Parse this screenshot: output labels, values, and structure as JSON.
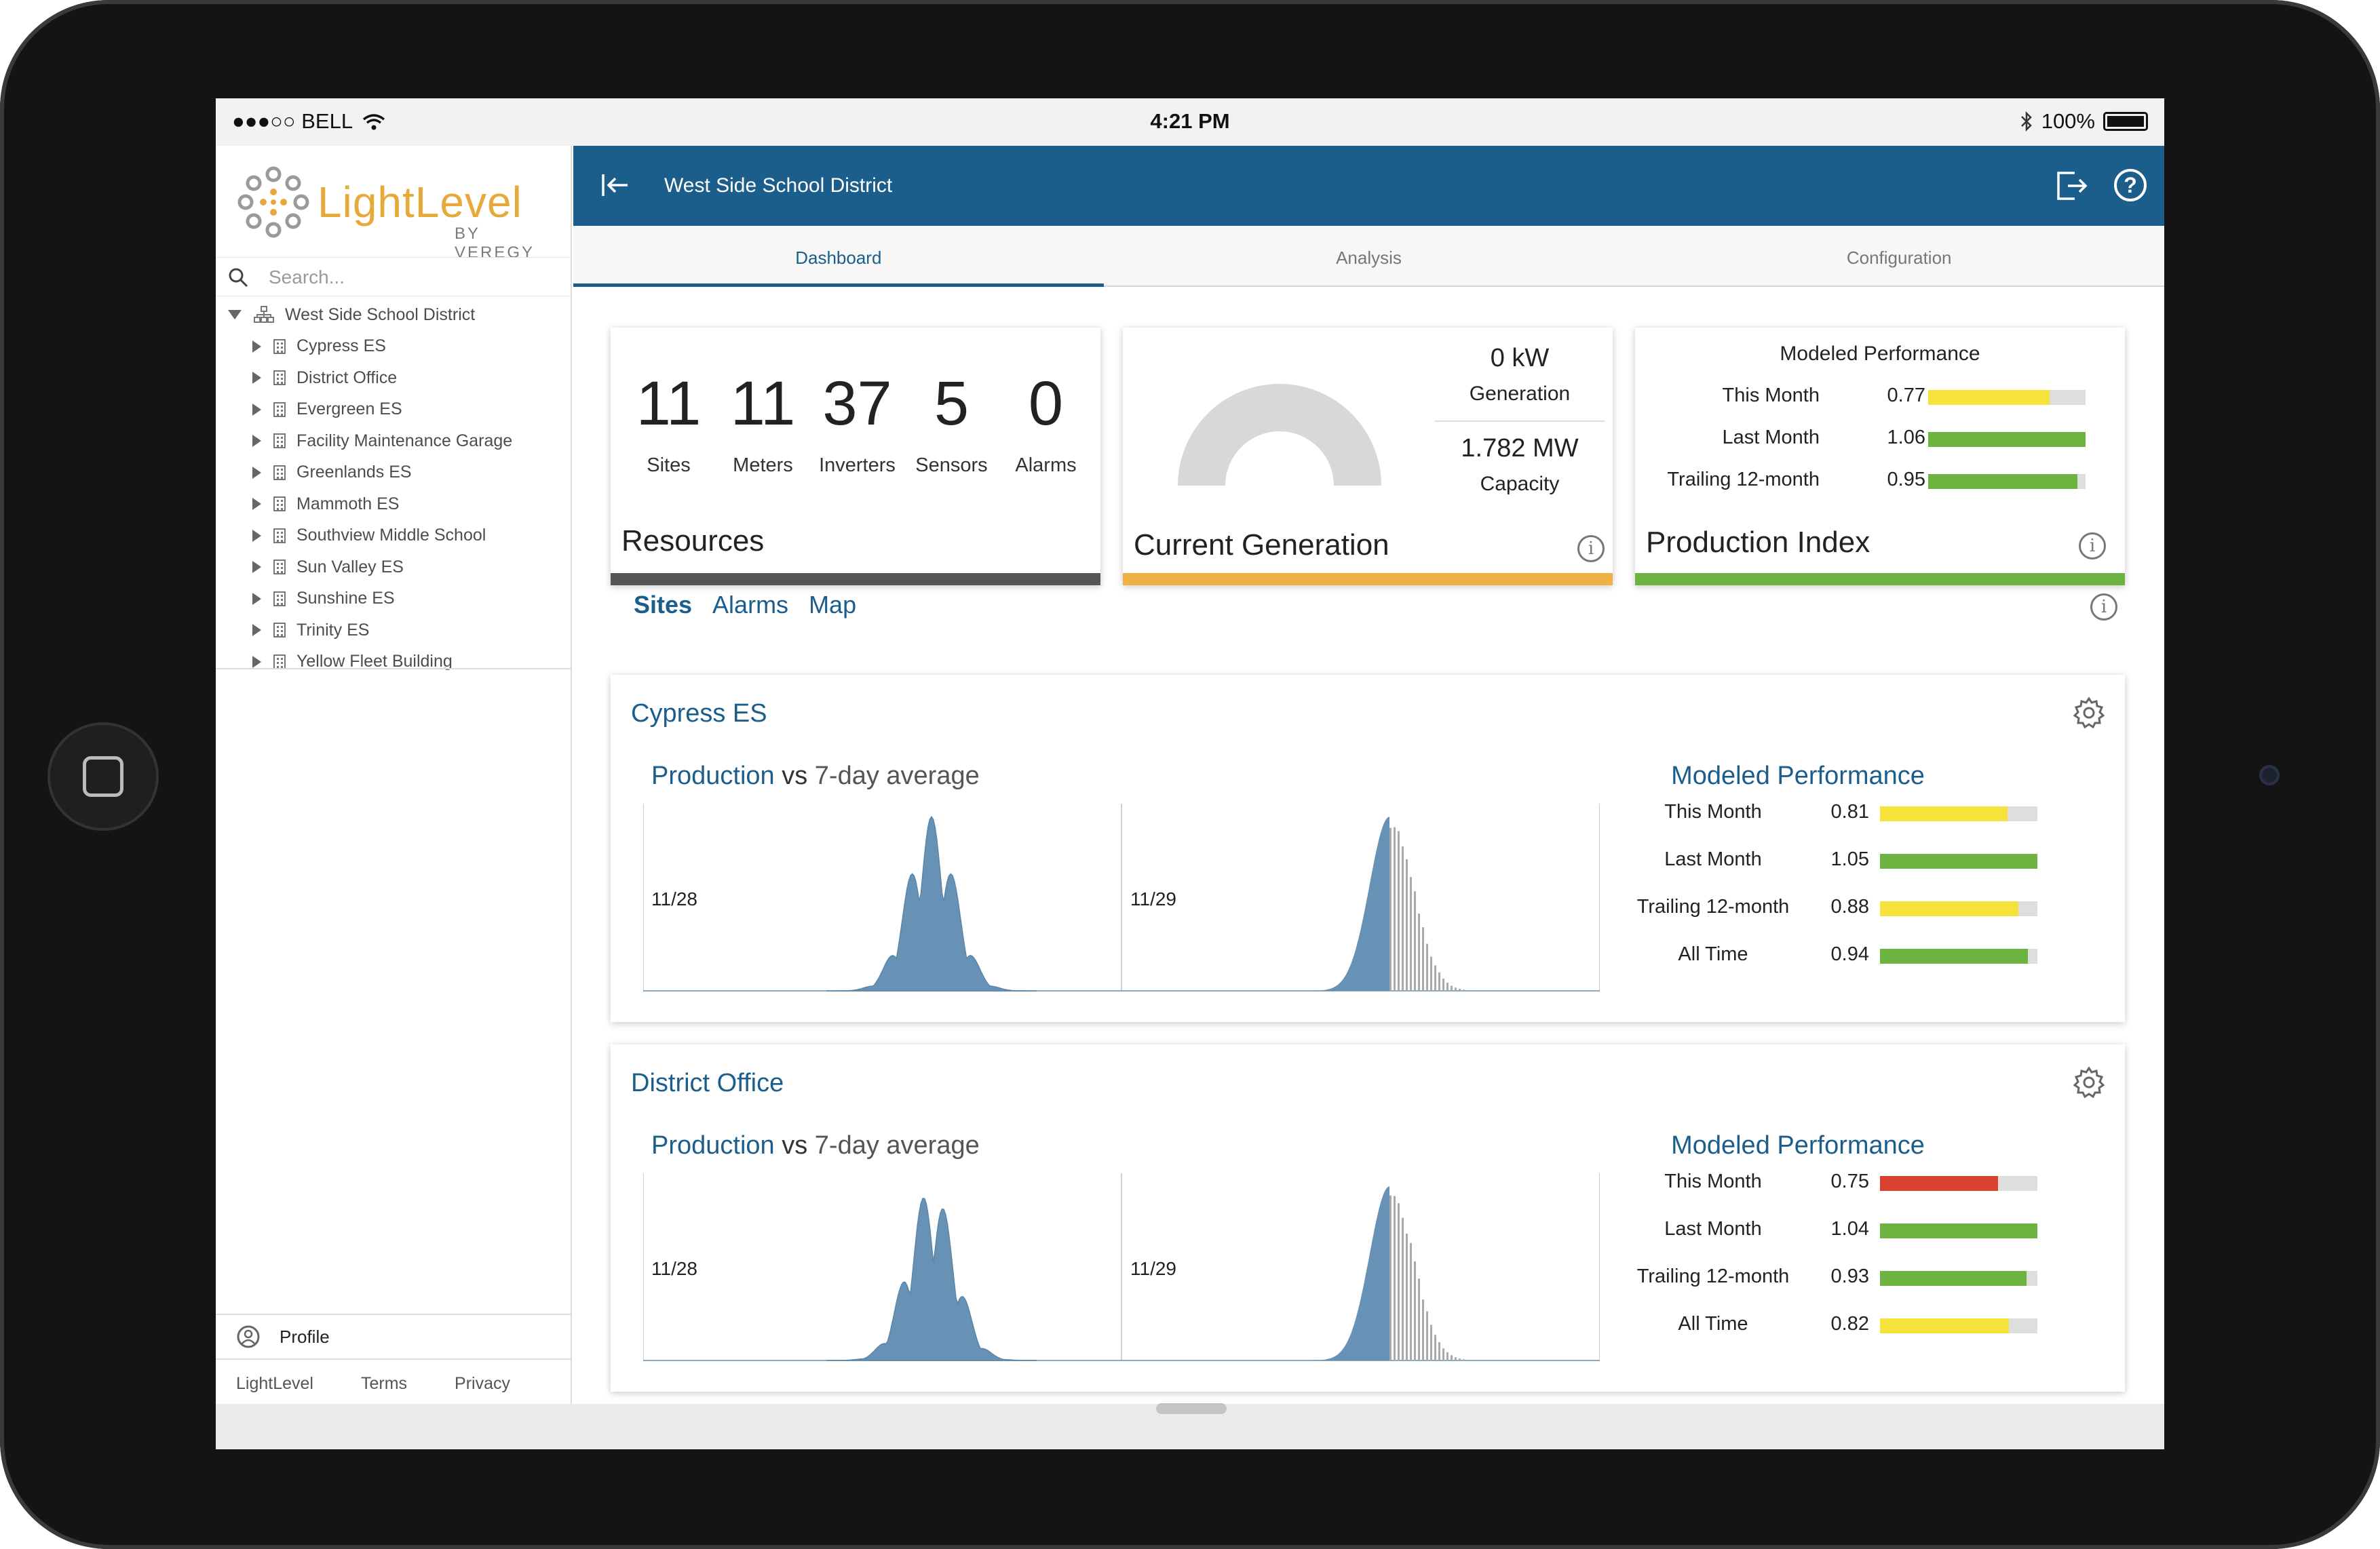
{
  "status_bar": {
    "carrier": "●●●○○ BELL",
    "time": "4:21 PM",
    "battery": "100%"
  },
  "brand": {
    "name": "LightLevel",
    "sub": "BY VEREGY",
    "accent": "#e7a93a"
  },
  "sidebar": {
    "search_placeholder": "Search...",
    "root": "West Side School District",
    "sites": [
      "Cypress ES",
      "District Office",
      "Evergreen ES",
      "Facility Maintenance Garage",
      "Greenlands ES",
      "Mammoth ES",
      "Southview Middle School",
      "Sun Valley ES",
      "Sunshine ES",
      "Trinity ES",
      "Yellow Fleet Building"
    ],
    "profile": "Profile",
    "footer_links": [
      "LightLevel",
      "Terms",
      "Privacy"
    ]
  },
  "header": {
    "title": "West Side School District",
    "primary_color": "#1b5e8c"
  },
  "tabs": [
    "Dashboard",
    "Analysis",
    "Configuration"
  ],
  "resources": {
    "title": "Resources",
    "items": [
      {
        "value": "11",
        "label": "Sites"
      },
      {
        "value": "11",
        "label": "Meters"
      },
      {
        "value": "37",
        "label": "Inverters"
      },
      {
        "value": "5",
        "label": "Sensors"
      },
      {
        "value": "0",
        "label": "Alarms"
      }
    ]
  },
  "current_generation": {
    "title": "Current Generation",
    "generation_value": "0 kW",
    "generation_label": "Generation",
    "capacity_value": "1.782 MW",
    "capacity_label": "Capacity",
    "gauge_fraction": 0
  },
  "production_index": {
    "title": "Production Index",
    "header": "Modeled Performance",
    "rows": [
      {
        "label": "This Month",
        "value": "0.77",
        "fraction": 0.77,
        "color": "#f5e33c"
      },
      {
        "label": "Last Month",
        "value": "1.06",
        "fraction": 1.0,
        "color": "#6db33f"
      },
      {
        "label": "Trailing 12-month",
        "value": "0.95",
        "fraction": 0.95,
        "color": "#6db33f"
      }
    ]
  },
  "subnav": [
    "Sites",
    "Alarms",
    "Map"
  ],
  "site_cards": [
    {
      "name": "Cypress ES",
      "prod": "Production",
      "vs": "vs",
      "avg": "7-day average",
      "day1": "11/28",
      "day2": "11/29",
      "mp_header": "Modeled Performance",
      "rows": [
        {
          "label": "This Month",
          "value": "0.81",
          "fraction": 0.81,
          "color": "#f5e33c"
        },
        {
          "label": "Last Month",
          "value": "1.05",
          "fraction": 1.0,
          "color": "#6db33f"
        },
        {
          "label": "Trailing 12-month",
          "value": "0.88",
          "fraction": 0.88,
          "color": "#f5e33c"
        },
        {
          "label": "All Time",
          "value": "0.94",
          "fraction": 0.94,
          "color": "#6db33f"
        }
      ]
    },
    {
      "name": "District Office",
      "prod": "Production",
      "vs": "vs",
      "avg": "7-day average",
      "day1": "11/28",
      "day2": "11/29",
      "mp_header": "Modeled Performance",
      "rows": [
        {
          "label": "This Month",
          "value": "0.75",
          "fraction": 0.75,
          "color": "#d9422f"
        },
        {
          "label": "Last Month",
          "value": "1.04",
          "fraction": 1.0,
          "color": "#6db33f"
        },
        {
          "label": "Trailing 12-month",
          "value": "0.93",
          "fraction": 0.93,
          "color": "#6db33f"
        },
        {
          "label": "All Time",
          "value": "0.82",
          "fraction": 0.82,
          "color": "#f5e33c"
        }
      ]
    }
  ]
}
